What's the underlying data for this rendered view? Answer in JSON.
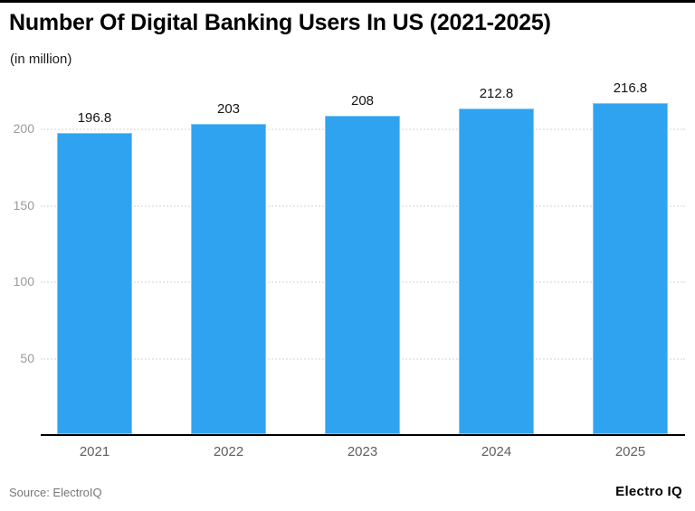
{
  "page": {
    "source_label": "Source: ElectroIQ",
    "brand": "Electro IQ"
  },
  "chart_data": {
    "type": "bar",
    "title": "Number Of Digital Banking Users In US (2021-2025)",
    "subtitle": "(in million)",
    "categories": [
      "2021",
      "2022",
      "2023",
      "2024",
      "2025"
    ],
    "values": [
      196.8,
      203,
      208,
      212.8,
      216.8
    ],
    "value_labels": [
      "196.8",
      "203",
      "208",
      "212.8",
      "216.8"
    ],
    "yticks": [
      50,
      100,
      150,
      200
    ],
    "ylim": [
      0,
      225
    ],
    "grid": "horizontal dotted",
    "legend": "none",
    "bar_color": "#2fa3f0",
    "axis_color": "#000000",
    "top_border_color": "#000000",
    "ytick_color": "#9b9b9b",
    "xtick_color": "#5f5f5f",
    "value_label_color": "#141414",
    "gridline_color": "#e9e9e9"
  }
}
